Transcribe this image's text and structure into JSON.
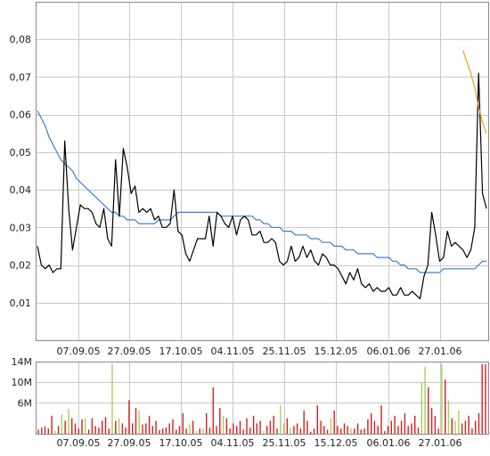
{
  "chart_data": [
    {
      "type": "line",
      "title": "",
      "xlabel": "",
      "ylabel": "",
      "ylim": [
        0,
        0.09
      ],
      "x_tick_labels": [
        "07.09.05",
        "27.09.05",
        "17.10.05",
        "04.11.05",
        "25.11.05",
        "15.12.05",
        "06.01.06",
        "27.01.06"
      ],
      "y_ticks": [
        0.01,
        0.02,
        0.03,
        0.04,
        0.05,
        0.06,
        0.07,
        0.08
      ],
      "y_tick_labels": [
        "0,01",
        "0,02",
        "0,03",
        "0,04",
        "0,05",
        "0,06",
        "0,07",
        "0,08"
      ],
      "grid": true,
      "series": [
        {
          "color": "#000000",
          "values": [
            0.025,
            0.02,
            0.019,
            0.02,
            0.018,
            0.019,
            0.019,
            0.053,
            0.035,
            0.024,
            0.03,
            0.036,
            0.035,
            0.035,
            0.034,
            0.031,
            0.03,
            0.035,
            0.027,
            0.025,
            0.048,
            0.033,
            0.051,
            0.046,
            0.039,
            0.041,
            0.034,
            0.035,
            0.034,
            0.035,
            0.032,
            0.033,
            0.03,
            0.03,
            0.031,
            0.04,
            0.029,
            0.028,
            0.023,
            0.021,
            0.024,
            0.027,
            0.027,
            0.027,
            0.033,
            0.025,
            0.034,
            0.033,
            0.031,
            0.03,
            0.033,
            0.028,
            0.032,
            0.033,
            0.032,
            0.028,
            0.028,
            0.029,
            0.026,
            0.026,
            0.027,
            0.026,
            0.021,
            0.02,
            0.021,
            0.025,
            0.021,
            0.022,
            0.025,
            0.022,
            0.024,
            0.021,
            0.02,
            0.023,
            0.022,
            0.02,
            0.02,
            0.019,
            0.017,
            0.015,
            0.018,
            0.016,
            0.019,
            0.015,
            0.014,
            0.015,
            0.013,
            0.014,
            0.013,
            0.013,
            0.014,
            0.012,
            0.012,
            0.014,
            0.012,
            0.012,
            0.013,
            0.012,
            0.011,
            0.017,
            0.02,
            0.034,
            0.028,
            0.021,
            0.022,
            0.029,
            0.025,
            0.026,
            0.025,
            0.024,
            0.022,
            0.024,
            0.03,
            0.071,
            0.039,
            0.035
          ]
        },
        {
          "color": "#3b82c8",
          "values": [
            0.061,
            0.059,
            0.057,
            0.054,
            0.052,
            0.05,
            0.048,
            0.047,
            0.046,
            0.045,
            0.043,
            0.042,
            0.041,
            0.04,
            0.039,
            0.038,
            0.037,
            0.036,
            0.035,
            0.034,
            0.034,
            0.033,
            0.033,
            0.032,
            0.032,
            0.032,
            0.031,
            0.031,
            0.031,
            0.031,
            0.031,
            0.032,
            0.032,
            0.032,
            0.032,
            0.033,
            0.034,
            0.034,
            0.034,
            0.034,
            0.034,
            0.034,
            0.034,
            0.034,
            0.034,
            0.034,
            0.034,
            0.033,
            0.033,
            0.033,
            0.033,
            0.033,
            0.033,
            0.033,
            0.033,
            0.033,
            0.032,
            0.032,
            0.031,
            0.031,
            0.03,
            0.03,
            0.03,
            0.029,
            0.029,
            0.029,
            0.028,
            0.028,
            0.028,
            0.028,
            0.027,
            0.027,
            0.027,
            0.026,
            0.026,
            0.026,
            0.025,
            0.025,
            0.025,
            0.024,
            0.024,
            0.024,
            0.023,
            0.023,
            0.023,
            0.023,
            0.023,
            0.022,
            0.022,
            0.022,
            0.022,
            0.021,
            0.021,
            0.02,
            0.02,
            0.019,
            0.019,
            0.019,
            0.018,
            0.018,
            0.018,
            0.018,
            0.018,
            0.018,
            0.019,
            0.019,
            0.019,
            0.019,
            0.019,
            0.019,
            0.019,
            0.019,
            0.019,
            0.02,
            0.021,
            0.021
          ]
        },
        {
          "color": "#f0a21a",
          "start_index": 109,
          "values": [
            0.077,
            0.074,
            0.071,
            0.067,
            0.062,
            0.058,
            0.055
          ]
        }
      ]
    },
    {
      "type": "bar",
      "title": "",
      "xlabel": "",
      "ylabel": "",
      "ylim": [
        0,
        14
      ],
      "y_ticks": [
        6,
        10,
        14
      ],
      "y_tick_labels": [
        "6M",
        "10M",
        "14M"
      ],
      "x_tick_labels": [
        "07.09.05",
        "27.09.05",
        "17.10.05",
        "04.11.05",
        "25.11.05",
        "15.12.05",
        "06.01.06",
        "27.01.06"
      ],
      "bar_colors": {
        "up": "#a8cf5a",
        "down": "#d81e1e"
      },
      "values": [
        0.8,
        1.2,
        1.4,
        1.0,
        3.5,
        0.6,
        1.5,
        3.8,
        2.5,
        4.8,
        3.0,
        2.0,
        1.0,
        2.8,
        3.0,
        0.8,
        3.0,
        1.5,
        1.2,
        2.5,
        3.2,
        1.0,
        13.5,
        2.5,
        3.0,
        2.0,
        1.2,
        6.5,
        2.0,
        5.0,
        4.5,
        1.8,
        2.0,
        3.5,
        1.5,
        2.5,
        0.7,
        1.0,
        1.2,
        2.0,
        2.8,
        0.8,
        1.5,
        4.0,
        1.0,
        2.0,
        2.5,
        0.5,
        1.0,
        1.0,
        4.0,
        1.2,
        9.0,
        1.5,
        5.0,
        3.5,
        3.0,
        1.0,
        2.0,
        1.5,
        2.5,
        0.8,
        3.0,
        1.2,
        3.5,
        2.0,
        2.5,
        0.6,
        1.5,
        2.5,
        3.5,
        1.0,
        5.5,
        2.0,
        3.0,
        1.2,
        1.5,
        2.0,
        1.0,
        4.5,
        2.5,
        0.4,
        1.0,
        5.5,
        2.5,
        1.5,
        0.8,
        3.0,
        4.5,
        1.5,
        1.0,
        2.0,
        1.5,
        1.0,
        1.0,
        2.0,
        0.8,
        1.0,
        2.8,
        4.0,
        2.5,
        1.5,
        5.5,
        0.5,
        1.5,
        2.5,
        3.5,
        1.5,
        2.5,
        4.0,
        1.5,
        2.0,
        3.5,
        1.2,
        10.0,
        13.0,
        9.0,
        5.0,
        3.5,
        1.0,
        13.5,
        10.5,
        6.5,
        3.0,
        2.5,
        4.5,
        2.0,
        2.5,
        3.5,
        1.0,
        2.5,
        4.0,
        13.5,
        13.5
      ],
      "up": [
        0,
        0,
        0,
        0,
        0,
        1,
        0,
        1,
        0,
        1,
        0,
        0,
        0,
        0,
        1,
        0,
        0,
        0,
        0,
        0,
        0,
        0,
        1,
        0,
        1,
        0,
        0,
        0,
        0,
        0,
        1,
        0,
        0,
        0,
        0,
        0,
        0,
        0,
        0,
        0,
        0,
        0,
        0,
        0,
        0,
        1,
        0,
        1,
        0,
        1,
        0,
        0,
        0,
        0,
        0,
        1,
        0,
        0,
        0,
        0,
        0,
        0,
        0,
        0,
        0,
        0,
        0,
        1,
        0,
        0,
        0,
        0,
        1,
        1,
        0,
        1,
        0,
        0,
        0,
        0,
        0,
        0,
        0,
        0,
        0,
        0,
        0,
        1,
        0,
        0,
        0,
        0,
        0,
        1,
        0,
        0,
        0,
        0,
        0,
        0,
        0,
        0,
        0,
        0,
        0,
        0,
        0,
        0,
        0,
        0,
        0,
        0,
        0,
        0,
        1,
        1,
        0,
        0,
        0,
        0,
        1,
        0,
        1,
        0,
        1,
        1,
        0,
        0,
        0,
        0,
        0,
        0,
        0,
        0
      ]
    }
  ]
}
